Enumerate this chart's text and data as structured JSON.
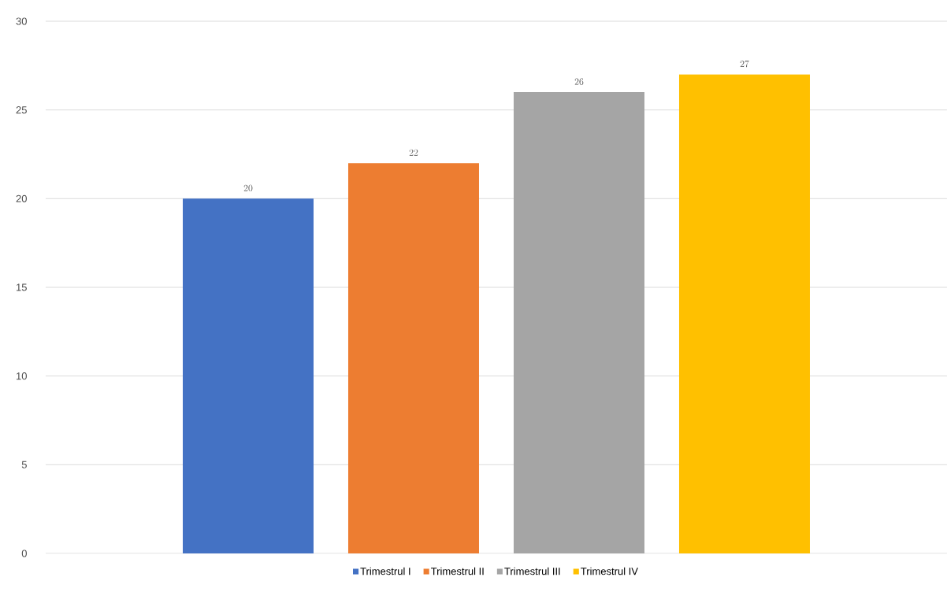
{
  "chart_data": {
    "type": "bar",
    "categories": [
      null
    ],
    "series": [
      {
        "name": "Trimestrul I",
        "color": "#4472c4",
        "values": [
          20
        ]
      },
      {
        "name": "Trimestrul II",
        "color": "#ed7d31",
        "values": [
          22
        ]
      },
      {
        "name": "Trimestrul III",
        "color": "#a5a5a5",
        "values": [
          26
        ]
      },
      {
        "name": "Trimestrul IV",
        "color": "#ffc000",
        "values": [
          27
        ]
      }
    ],
    "ylim": [
      0,
      30
    ],
    "yticks": [
      0,
      5,
      10,
      15,
      20,
      25,
      30
    ],
    "grid": "y",
    "legend": "bottom",
    "data_labels": true
  }
}
